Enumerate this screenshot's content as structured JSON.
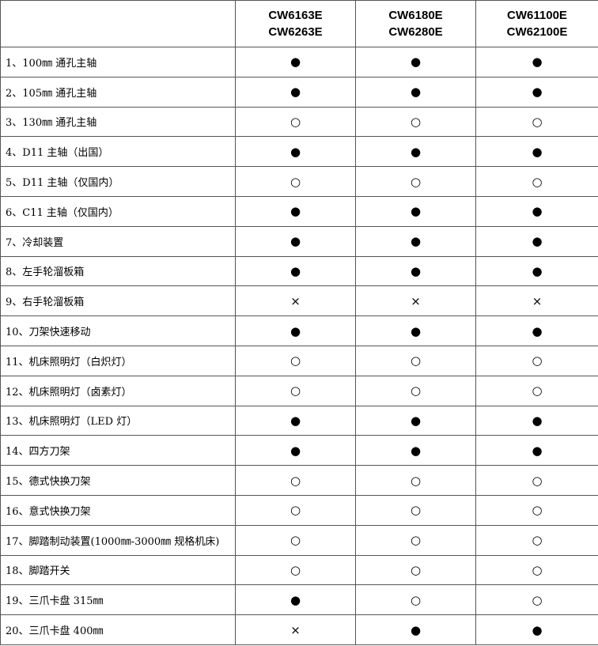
{
  "table": {
    "header": [
      [
        "CW6163E",
        "CW6263E"
      ],
      [
        "CW6180E",
        "CW6280E"
      ],
      [
        "CW61100E",
        "CW62100E"
      ]
    ],
    "rows": [
      [
        "1、100㎜ 通孔主轴",
        "●",
        "●",
        "●"
      ],
      [
        "2、105㎜ 通孔主轴",
        "●",
        "●",
        "●"
      ],
      [
        "3、130㎜ 通孔主轴",
        "○",
        "○",
        "○"
      ],
      [
        "4、D11 主轴（出国）",
        "●",
        "●",
        "●"
      ],
      [
        "5、D11 主轴（仅国内）",
        "○",
        "○",
        "○"
      ],
      [
        "6、C11 主轴（仅国内）",
        "●",
        "●",
        "●"
      ],
      [
        "7、冷却装置",
        "●",
        "●",
        "●"
      ],
      [
        "8、左手轮溜板箱",
        "●",
        "●",
        "●"
      ],
      [
        "9、右手轮溜板箱",
        "×",
        "×",
        "×"
      ],
      [
        "10、刀架快速移动",
        "●",
        "●",
        "●"
      ],
      [
        "11、机床照明灯（白炽灯）",
        "○",
        "○",
        "○"
      ],
      [
        "12、机床照明灯（卤素灯）",
        "○",
        "○",
        "○"
      ],
      [
        "13、机床照明灯（LED 灯）",
        "●",
        "●",
        "●"
      ],
      [
        "14、四方刀架",
        "●",
        "●",
        "●"
      ],
      [
        "15、德式快换刀架",
        "○",
        "○",
        "○"
      ],
      [
        "16、意式快换刀架",
        "○",
        "○",
        "○"
      ],
      [
        "17、脚踏制动装置(1000㎜-3000㎜ 规格机床)",
        "○",
        "○",
        "○"
      ],
      [
        "18、脚踏开关",
        "○",
        "○",
        "○"
      ],
      [
        "19、三爪卡盘 315㎜",
        "●",
        "○",
        "○"
      ],
      [
        "20、三爪卡盘 400㎜",
        "×",
        "●",
        "●"
      ]
    ]
  }
}
